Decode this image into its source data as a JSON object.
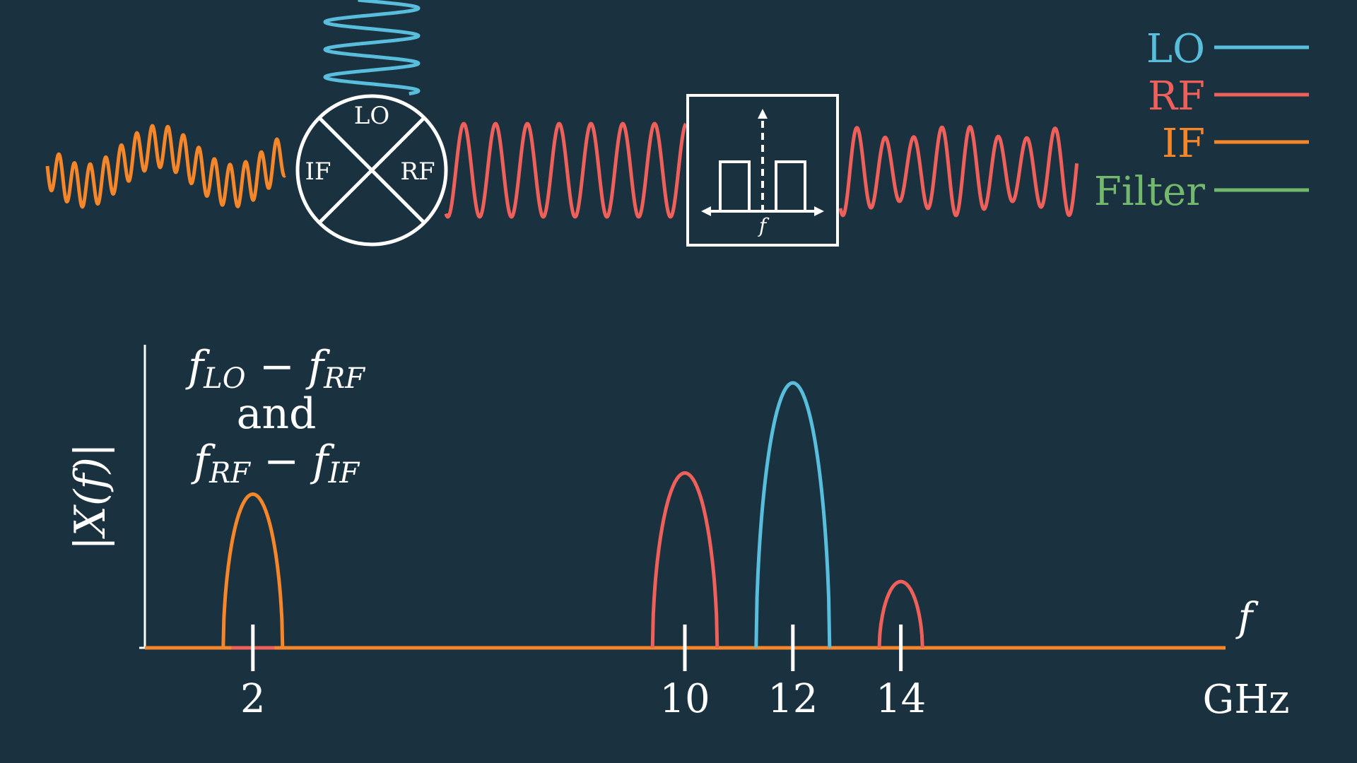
{
  "colors": {
    "background": "#1a3140",
    "lo": "#58bedc",
    "rf": "#f0605a",
    "if": "#f5862a",
    "filter": "#73b86c",
    "white": "#ffffff"
  },
  "legend": [
    {
      "label": "LO",
      "color_key": "lo"
    },
    {
      "label": "RF",
      "color_key": "rf"
    },
    {
      "label": "IF",
      "color_key": "if"
    },
    {
      "label": "Filter",
      "color_key": "filter"
    }
  ],
  "mixer": {
    "lo": "LO",
    "if": "IF",
    "rf": "RF"
  },
  "filter_block": {
    "axis_label": "f"
  },
  "annotation": {
    "line1_base1": "f",
    "line1_sub1": "LO",
    "line1_op": " − ",
    "line1_base2": "f",
    "line1_sub2": "RF",
    "line2": "and",
    "line3_base1": "f",
    "line3_sub1": "RF",
    "line3_op": " − ",
    "line3_base2": "f",
    "line3_sub2": "IF"
  },
  "chart_data": {
    "type": "area",
    "xlabel": "f",
    "ylabel": "|X(f)|",
    "x_unit": "GHz",
    "x_ticks": [
      2,
      10,
      12,
      14
    ],
    "xlim": [
      0,
      18.6
    ],
    "series": [
      {
        "name": "IF",
        "center": 2,
        "peak": 0.58,
        "halfwidth": 0.55
      },
      {
        "name": "RF",
        "center": 10,
        "peak": 0.66,
        "halfwidth": 0.6
      },
      {
        "name": "LO",
        "center": 12,
        "peak": 1.0,
        "halfwidth": 0.68
      },
      {
        "name": "RF",
        "center": 14,
        "peak": 0.25,
        "halfwidth": 0.4
      }
    ]
  }
}
